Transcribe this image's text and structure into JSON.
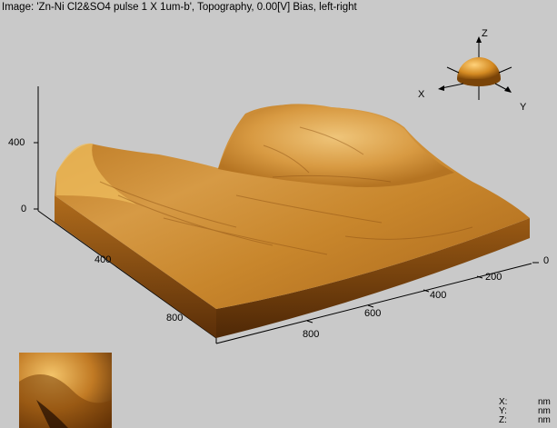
{
  "window": {
    "title": "Image: 'Zn-Ni Cl2&SO4 pulse 1 X 1um-b', Topography, 0.00[V] Bias, left-right"
  },
  "axes": {
    "z_ticks": [
      "400",
      "0"
    ],
    "x_ticks": [
      "400",
      "800"
    ],
    "y_ticks": [
      "0",
      "200",
      "400",
      "600",
      "800"
    ]
  },
  "orientation": {
    "x": "X",
    "y": "Y",
    "z": "Z"
  },
  "units": {
    "x_key": "X:",
    "x_unit": "nm",
    "y_key": "Y:",
    "y_unit": "nm",
    "z_key": "Z:",
    "z_unit": "nm"
  },
  "colors": {
    "background": "#c9c9c9",
    "surface_light": "#f0c060",
    "surface_mid": "#c8862c",
    "surface_dark": "#6e3a0a"
  }
}
